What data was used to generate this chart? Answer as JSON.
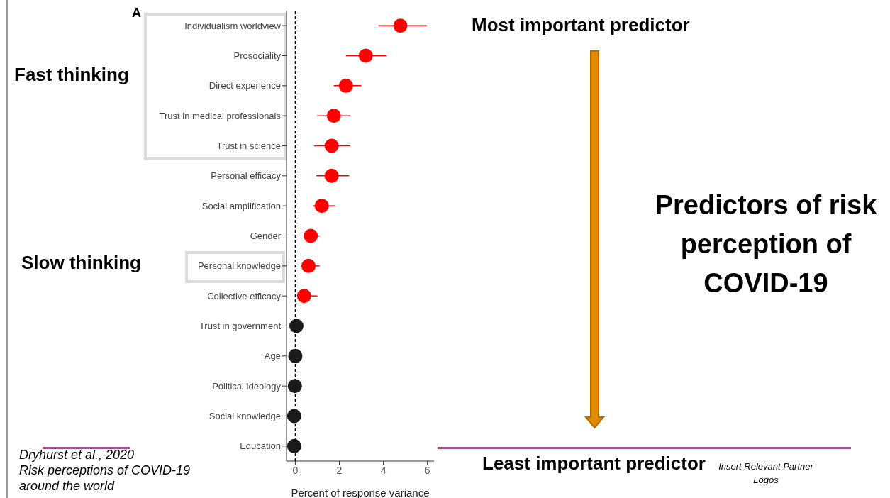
{
  "chart_data": {
    "type": "scatter",
    "orientation": "horizontal",
    "title": "Predictors of risk perception of COVID-19",
    "xlabel": "Percent of response variance",
    "categories": [
      "Individualism worldview",
      "Prosociality",
      "Direct experience",
      "Trust in medical professionals",
      "Trust in science",
      "Personal efficacy",
      "Social amplification",
      "Gender",
      "Personal knowledge",
      "Collective efficacy",
      "Trust in government",
      "Age",
      "Political ideology",
      "Social knowledge",
      "Education"
    ],
    "series": [
      {
        "color": "#ff0000",
        "values": [
          4.77,
          3.2,
          2.3,
          1.75,
          1.65,
          1.65,
          1.2,
          0.7,
          0.6,
          0.4,
          null,
          null,
          null,
          null,
          null
        ],
        "errors": [
          [
            3.77,
            5.97
          ],
          [
            2.3,
            4.15
          ],
          [
            1.75,
            3.0
          ],
          [
            1.0,
            2.5
          ],
          [
            0.85,
            2.5
          ],
          [
            0.95,
            2.45
          ],
          [
            0.8,
            1.8
          ],
          [
            0.5,
            1.1
          ],
          [
            0.25,
            1.1
          ],
          [
            0.15,
            1.0
          ],
          null,
          null,
          null,
          null,
          null
        ]
      },
      {
        "color": "#1a1a1a",
        "values": [
          null,
          null,
          null,
          null,
          null,
          null,
          null,
          null,
          null,
          null,
          0.05,
          0.0,
          -0.02,
          -0.05,
          -0.05
        ]
      }
    ],
    "xlim": [
      -0.4,
      6.3
    ],
    "xticks": [
      0,
      2,
      4,
      6
    ],
    "marker": "circle",
    "legend": false,
    "grid": false,
    "ref_lines": [
      {
        "axis": "x",
        "value": 0,
        "line_style": "dashed",
        "color": "#000000"
      }
    ],
    "annotations": [
      "A",
      "Fast thinking",
      "Slow thinking",
      "Most important predictor",
      "Least important predictor",
      "Dryhurst et al., 2020\nRisk perceptions of COVID-19\naround the world",
      "Insert Relevant Partner\nLogos"
    ]
  }
}
